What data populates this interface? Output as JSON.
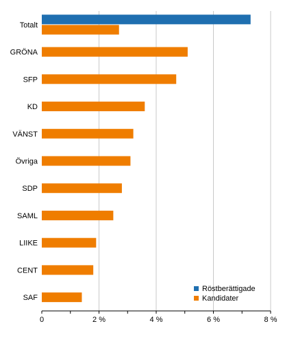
{
  "chart_data": {
    "type": "bar",
    "orientation": "horizontal",
    "categories": [
      "Totalt",
      "GRÖNA",
      "SFP",
      "KD",
      "VÄNST",
      "Övriga",
      "SDP",
      "SAML",
      "LIIKE",
      "CENT",
      "SAF"
    ],
    "series": [
      {
        "name": "Röstberättigade",
        "color": "#1f6fb0",
        "values": [
          7.3,
          null,
          null,
          null,
          null,
          null,
          null,
          null,
          null,
          null,
          null
        ]
      },
      {
        "name": "Kandidater",
        "color": "#ef7d00",
        "values": [
          2.7,
          5.1,
          4.7,
          3.6,
          3.2,
          3.1,
          2.8,
          2.5,
          1.9,
          1.8,
          1.4
        ]
      }
    ],
    "x_ticks": [
      "0",
      "2 %",
      "4 %",
      "6 %",
      "8 %"
    ],
    "x_tick_values": [
      0,
      2,
      4,
      6,
      8
    ],
    "xlim": [
      0,
      8
    ],
    "grid": true,
    "legend_position": "bottom-right"
  }
}
